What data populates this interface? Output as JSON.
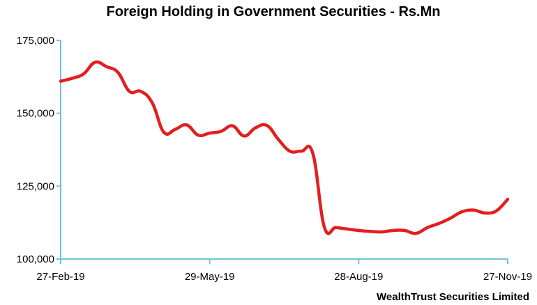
{
  "chart_data": {
    "type": "line",
    "title": "Foreign Holding in Government Securities - Rs.Mn",
    "xlabel": "",
    "ylabel": "",
    "ylim": [
      100000,
      175000
    ],
    "yticks": [
      100000,
      125000,
      150000,
      175000
    ],
    "ytick_labels": [
      "100,000",
      "125,000",
      "150,000",
      "175,000"
    ],
    "xlim": [
      "2019-02-27",
      "2019-11-27"
    ],
    "xtick_labels": [
      "27-Feb-19",
      "29-May-19",
      "28-Aug-19",
      "27-Nov-19"
    ],
    "xticks": [
      "2019-02-27",
      "2019-05-29",
      "2019-08-28",
      "2019-11-27"
    ],
    "grid": false,
    "legend": "none",
    "source": "WealthTrust Securities Limited",
    "line_color": "#e21f1f",
    "axis_color": "#6fc4d8",
    "series": [
      {
        "x": [
          "2019-02-27",
          "2019-03-06",
          "2019-03-13",
          "2019-03-20",
          "2019-03-27",
          "2019-04-03",
          "2019-04-10",
          "2019-04-17",
          "2019-04-24",
          "2019-05-01",
          "2019-05-08",
          "2019-05-15",
          "2019-05-22",
          "2019-05-29",
          "2019-06-05",
          "2019-06-12",
          "2019-06-19",
          "2019-06-26",
          "2019-07-03",
          "2019-07-10",
          "2019-07-17",
          "2019-07-24",
          "2019-07-31",
          "2019-08-07",
          "2019-08-14",
          "2019-08-21",
          "2019-08-28",
          "2019-09-04",
          "2019-09-11",
          "2019-09-18",
          "2019-09-25",
          "2019-10-02",
          "2019-10-09",
          "2019-10-16",
          "2019-10-23",
          "2019-10-30",
          "2019-11-06",
          "2019-11-13",
          "2019-11-20",
          "2019-11-27"
        ],
        "y": [
          161000,
          162000,
          163500,
          167500,
          166000,
          164000,
          157500,
          157500,
          153500,
          143500,
          144500,
          146000,
          142500,
          143200,
          143800,
          145700,
          142200,
          145000,
          145800,
          141000,
          137000,
          137000,
          136200,
          111000,
          110800,
          110300,
          109800,
          109500,
          109300,
          109800,
          109800,
          108800,
          110800,
          112200,
          114000,
          116200,
          116800,
          115800,
          116500,
          120500
        ]
      }
    ]
  }
}
